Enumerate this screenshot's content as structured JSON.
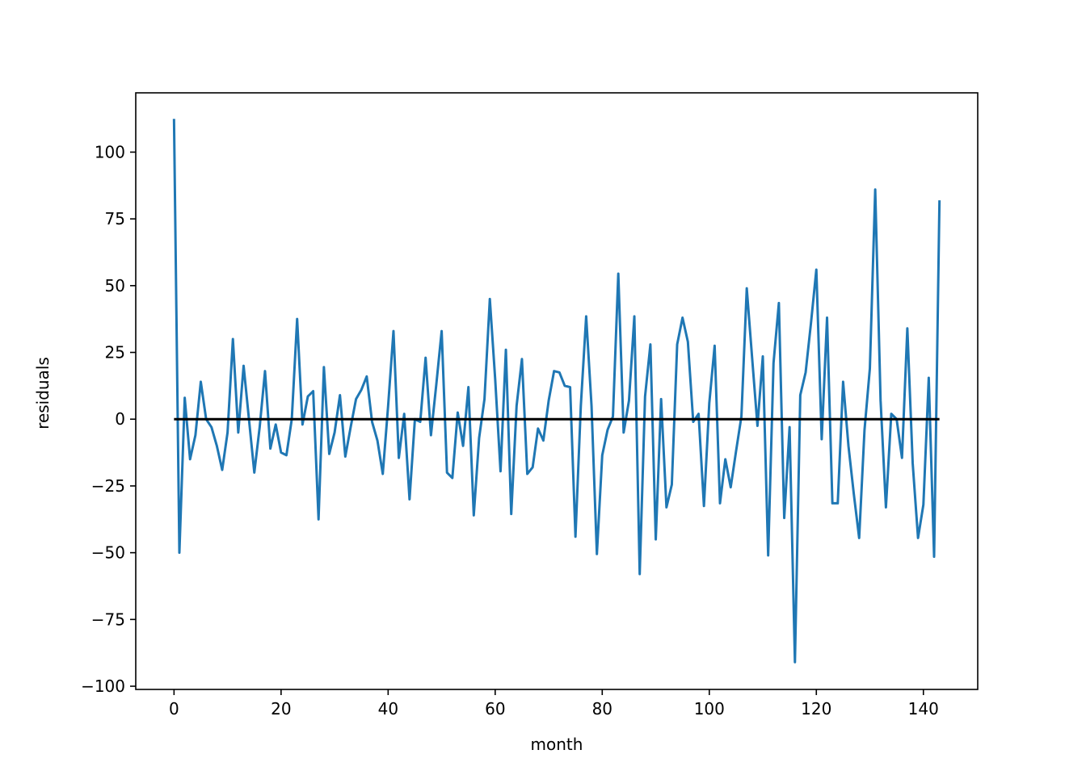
{
  "chart_data": {
    "type": "line",
    "title": "",
    "xlabel": "month",
    "ylabel": "residuals",
    "xlim": [
      -7.15,
      150.15
    ],
    "ylim": [
      -101.2,
      122.2
    ],
    "xticks": [
      0,
      20,
      40,
      60,
      80,
      100,
      120,
      140
    ],
    "yticks": [
      -100,
      -75,
      -50,
      -25,
      0,
      25,
      50,
      75,
      100
    ],
    "ytick_labels": [
      "−100",
      "−75",
      "−50",
      "−25",
      "0",
      "25",
      "50",
      "75",
      "100"
    ],
    "grid": false,
    "legend": "none",
    "colors": {
      "residuals": "#1f77b4",
      "zero_line": "#000000"
    },
    "series": [
      {
        "x": [
          0,
          1,
          2,
          3,
          4,
          5,
          6,
          7,
          8,
          9,
          10,
          11,
          12,
          13,
          14,
          15,
          16,
          17,
          18,
          19,
          20,
          21,
          22,
          23,
          24,
          25,
          26,
          27,
          28,
          29,
          30,
          31,
          32,
          33,
          34,
          35,
          36,
          37,
          38,
          39,
          40,
          41,
          42,
          43,
          44,
          45,
          46,
          47,
          48,
          49,
          50,
          51,
          52,
          53,
          54,
          55,
          56,
          57,
          58,
          59,
          60,
          61,
          62,
          63,
          64,
          65,
          66,
          67,
          68,
          69,
          70,
          71,
          72,
          73,
          74,
          75,
          76,
          77,
          78,
          79,
          80,
          81,
          82,
          83,
          84,
          85,
          86,
          87,
          88,
          89,
          90,
          91,
          92,
          93,
          94,
          95,
          96,
          97,
          98,
          99,
          100,
          101,
          102,
          103,
          104,
          105,
          106,
          107,
          108,
          109,
          110,
          111,
          112,
          113,
          114,
          115,
          116,
          117,
          118,
          119,
          120,
          121,
          122,
          123,
          124,
          125,
          126,
          127,
          128,
          129,
          130,
          131,
          132,
          133,
          134,
          135,
          136,
          137,
          138,
          139,
          140,
          141,
          142,
          143
        ],
        "values": [
          112,
          -50,
          8,
          -15,
          -6,
          14,
          0,
          -3,
          -10,
          -19,
          -5,
          30,
          -5,
          20,
          0,
          -20,
          -3,
          18,
          -11,
          -2,
          -12.5,
          -13.5,
          0,
          37.5,
          -2,
          8.5,
          10.5,
          -37.5,
          19.5,
          -13,
          -5,
          9,
          -14,
          -3,
          7.5,
          11,
          16,
          -1,
          -8,
          -20.5,
          5,
          33,
          -14.5,
          2,
          -30,
          0,
          -1,
          23,
          -6,
          13,
          33,
          -20,
          -22,
          2.5,
          -10,
          12,
          -36,
          -7,
          7.5,
          45,
          15,
          -19.5,
          26,
          -35.5,
          5,
          22.5,
          -20.5,
          -18,
          -3.5,
          -8,
          7,
          18,
          17.5,
          12.5,
          12,
          -44,
          5,
          38.5,
          5,
          -50.5,
          -13.5,
          -4,
          1,
          54.5,
          -5,
          7,
          38.5,
          -58,
          8.5,
          28,
          -45,
          7.5,
          -33,
          -24.5,
          28,
          38,
          29,
          -1,
          2,
          -32.5,
          6,
          27.5,
          -31.5,
          -15,
          -25.5,
          -12,
          1,
          49,
          23,
          -2.5,
          23.5,
          -51,
          21,
          43.5,
          -37,
          -3,
          -91,
          9,
          17.5,
          36,
          56,
          -7.5,
          38,
          -31.5,
          -31.5,
          14,
          -10,
          -28,
          -44.5,
          -4,
          19,
          86,
          7,
          -33,
          2,
          0,
          -14.5,
          34,
          -16.5,
          -44.5,
          -32,
          15.5,
          -51.5,
          81.5
        ]
      }
    ],
    "reference_line": {
      "y": 0,
      "x_start": 0,
      "x_end": 143
    }
  }
}
